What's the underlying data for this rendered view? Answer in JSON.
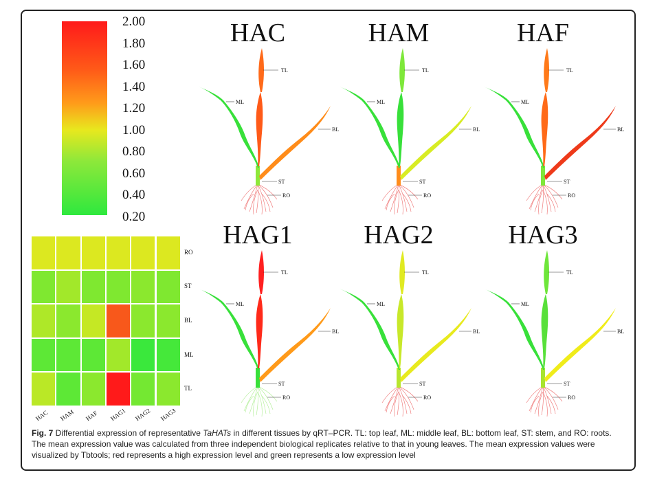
{
  "figure": {
    "caption_label": "Fig. 7",
    "caption_part1": " Differential expression of representative ",
    "caption_italic": "TaHATs",
    "caption_part2": " in different tissues by qRT–PCR. TL: top leaf, ML: middle leaf, BL: bottom leaf, ST: stem, and RO: roots. The mean expression value was calculated from three independent biological replicates relative to that in young leaves. The mean expression values were visualized by Tbtools; red represents a high expression level and green represents a low expression level"
  },
  "colorbar": {
    "ticks": [
      "2.00",
      "1.80",
      "1.60",
      "1.40",
      "1.20",
      "1.00",
      "0.80",
      "0.60",
      "0.40",
      "0.20"
    ],
    "colors": {
      "high": "#ff1a1a",
      "mid": "#e8e81e",
      "low": "#2ee83e"
    }
  },
  "heatmap": {
    "rows": [
      "RO",
      "ST",
      "BL",
      "ML",
      "TL"
    ],
    "cols": [
      "HAC",
      "HAM",
      "HAF",
      "HAG1",
      "HAG2",
      "HAG3"
    ],
    "values": [
      [
        0.95,
        0.95,
        0.95,
        0.95,
        0.95,
        0.95
      ],
      [
        0.55,
        0.7,
        0.55,
        0.55,
        0.6,
        0.55
      ],
      [
        0.75,
        0.6,
        0.85,
        1.7,
        0.6,
        0.6
      ],
      [
        0.4,
        0.4,
        0.4,
        0.7,
        0.25,
        0.3
      ],
      [
        0.8,
        0.4,
        0.6,
        2.0,
        0.5,
        0.6
      ]
    ]
  },
  "plants": [
    {
      "title": "HAC",
      "tl": "#ff6a1a",
      "ml": "#ff5a18",
      "ml_tip": "#38e03a",
      "bl": "#ff8c1a",
      "st": "#8ee83a",
      "ro": "#f08080"
    },
    {
      "title": "HAM",
      "tl": "#7ee83a",
      "ml": "#38e03a",
      "ml_tip": "#38e03a",
      "bl": "#d8ec24",
      "st": "#ff8c1a",
      "ro": "#f08080"
    },
    {
      "title": "HAF",
      "tl": "#ff7a1a",
      "ml": "#ff6a18",
      "ml_tip": "#38e03a",
      "bl": "#ee3a1a",
      "st": "#7ee83a",
      "ro": "#f08080"
    },
    {
      "title": "HAG1",
      "tl": "#ff2020",
      "ml": "#ff2a1a",
      "ml_tip": "#38e03a",
      "bl": "#ff9a1a",
      "st": "#38e03a",
      "ro": "#b8f0a0"
    },
    {
      "title": "HAG2",
      "tl": "#e0ea22",
      "ml": "#c8e82a",
      "ml_tip": "#38e03a",
      "bl": "#e8ea1e",
      "st": "#b8e62e",
      "ro": "#f08080"
    },
    {
      "title": "HAG3",
      "tl": "#6ee63a",
      "ml": "#58e03a",
      "ml_tip": "#38e03a",
      "bl": "#f0ec1a",
      "st": "#a8e42e",
      "ro": "#f08080"
    }
  ],
  "plant_labels": {
    "tl": "TL",
    "ml": "ML",
    "bl": "BL",
    "st": "ST",
    "ro": "RO"
  }
}
